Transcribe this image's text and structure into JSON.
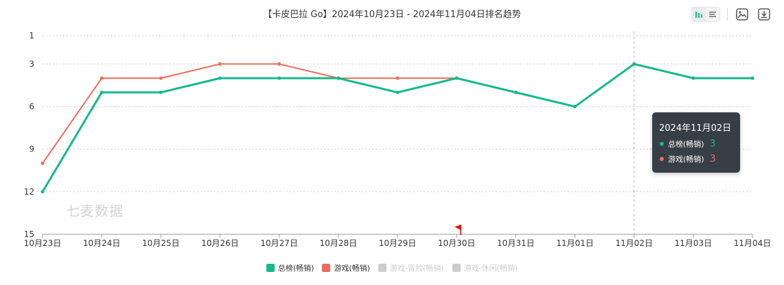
{
  "title": "【卡皮巴拉 Go】2024年10月23日 - 2024年11月04日排名趋势",
  "watermark": "七麦数据",
  "toolbar": {
    "icons": [
      "bar-chart-icon",
      "list-icon",
      "image-download-icon",
      "download-icon"
    ]
  },
  "colors": {
    "series1": "#13b98b",
    "series2": "#ee6b5c",
    "disabled": "#cccccc",
    "grid": "#c9c9c9",
    "axis": "#999999",
    "text": "#333333"
  },
  "tooltip": {
    "date": "2024年11月02日",
    "rows": [
      {
        "name": "总榜(畅销)",
        "value": "3"
      },
      {
        "name": "游戏(畅销)",
        "value": "3"
      }
    ]
  },
  "legend": [
    {
      "name": "总榜(畅销)",
      "active": true
    },
    {
      "name": "游戏(畅销)",
      "active": true
    },
    {
      "name": "游戏-冒险(畅销)",
      "active": false
    },
    {
      "name": "游戏-休闲(畅销)",
      "active": false
    }
  ],
  "chart_data": {
    "type": "line",
    "title": "【卡皮巴拉 Go】2024年10月23日 - 2024年11月04日排名趋势",
    "x": [
      "10月23日",
      "10月24日",
      "10月25日",
      "10月26日",
      "10月27日",
      "10月28日",
      "10月29日",
      "10月30日",
      "10月31日",
      "11月01日",
      "11月02日",
      "11月03日",
      "11月04日"
    ],
    "y_ticks": [
      "1",
      "3",
      "6",
      "9",
      "12",
      "15"
    ],
    "ylim": [
      1,
      15
    ],
    "y_inverted": true,
    "grid": true,
    "legend_position": "bottom",
    "series": [
      {
        "name": "总榜(畅销)",
        "values": [
          12,
          5,
          5,
          4,
          4,
          4,
          5,
          4,
          5,
          6,
          3,
          4,
          4
        ]
      },
      {
        "name": "游戏(畅销)",
        "values": [
          10,
          4,
          4,
          3,
          3,
          4,
          4,
          4,
          null,
          null,
          3,
          4,
          4
        ]
      }
    ],
    "annotations": [
      {
        "x": "10月30日",
        "type": "flag-marker"
      }
    ],
    "highlight_x": "11月02日"
  }
}
